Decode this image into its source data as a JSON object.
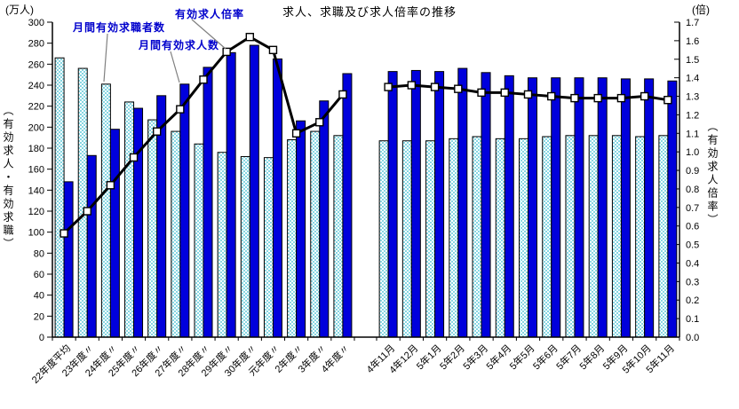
{
  "title": "求人、求職及び求人倍率の推移",
  "units": {
    "left": "(万人)",
    "right": "(倍)"
  },
  "axis_titles": {
    "left": "（有効求人・有効求職）",
    "right": "（有効求人倍率）"
  },
  "annotations": {
    "jobseekers": "月間有効求職者数",
    "openings": "月間有効求人数",
    "ratio": "有効求人倍率"
  },
  "colors": {
    "openings_bar": "#0000dc",
    "jobseekers_bar_base": "#86d6e2",
    "jobseekers_bar_dot": "#ffffff",
    "bar_outline": "#000000",
    "ratio_line": "#000000",
    "marker_fill": "#ffffff",
    "marker_outline": "#000000",
    "annotation_text": "#0000cc",
    "leader_line": "#808080"
  },
  "chart_data": {
    "type": "bar+line",
    "title": "求人、求職及び求人倍率の推移",
    "ylabel_left": "（有効求人・有効求職）(万人)",
    "ylabel_right": "（有効求人倍率）(倍)",
    "ylim_left": [
      0,
      300
    ],
    "ytick_step_left": 20,
    "ylim_right": [
      0,
      1.7
    ],
    "ytick_step_right": 0.1,
    "grid": false,
    "legend_position": "none",
    "panels": [
      {
        "name": "annual",
        "categories": [
          "22年度平均",
          "23年度〃",
          "24年度〃",
          "25年度〃",
          "26年度〃",
          "27年度〃",
          "28年度〃",
          "29年度〃",
          "30年度〃",
          "元年度〃",
          "2年度〃",
          "3年度〃",
          "4年度〃"
        ],
        "series": [
          {
            "name": "月間有効求職者数",
            "type": "bar",
            "axis": "left",
            "values": [
              266,
              256,
              241,
              224,
              207,
              196,
              184,
              176,
              172,
              171,
              188,
              196,
              192
            ]
          },
          {
            "name": "月間有効求人数",
            "type": "bar",
            "axis": "left",
            "values": [
              148,
              173,
              198,
              218,
              230,
              241,
              257,
              271,
              278,
              265,
              206,
              225,
              251
            ]
          },
          {
            "name": "有効求人倍率",
            "type": "line",
            "axis": "right",
            "values": [
              0.56,
              0.68,
              0.82,
              0.97,
              1.11,
              1.23,
              1.39,
              1.54,
              1.62,
              1.55,
              1.1,
              1.16,
              1.31
            ]
          }
        ]
      },
      {
        "name": "monthly",
        "categories": [
          "4年11月",
          "4年12月",
          "5年1月",
          "5年2月",
          "5年3月",
          "5年4月",
          "5年5月",
          "5年6月",
          "5年7月",
          "5年8月",
          "5年9月",
          "5年10月",
          "5年11月"
        ],
        "series": [
          {
            "name": "月間有効求職者数",
            "type": "bar",
            "axis": "left",
            "values": [
              187,
              187,
              187,
              189,
              191,
              189,
              189,
              191,
              192,
              192,
              192,
              191,
              192
            ]
          },
          {
            "name": "月間有効求人数",
            "type": "bar",
            "axis": "left",
            "values": [
              253,
              254,
              253,
              256,
              252,
              249,
              247,
              247,
              247,
              247,
              246,
              246,
              244
            ]
          },
          {
            "name": "有効求人倍率",
            "type": "line",
            "axis": "right",
            "values": [
              1.35,
              1.36,
              1.35,
              1.34,
              1.32,
              1.32,
              1.31,
              1.3,
              1.29,
              1.29,
              1.29,
              1.3,
              1.28
            ]
          }
        ]
      }
    ]
  }
}
